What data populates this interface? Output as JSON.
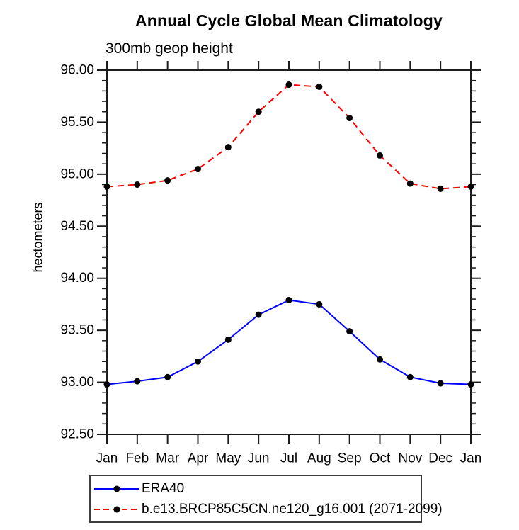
{
  "title": "Annual Cycle Global Mean Climatology",
  "subtitle": "300mb geop height",
  "ylabel": "hectometers",
  "colors": {
    "axis": "#1c1c1c",
    "marker": "#000000",
    "era40_line": "#0000ff",
    "model_line": "#ff0000",
    "legend_border": "#3d3d3d",
    "background": "#ffffff"
  },
  "chart_data": {
    "type": "line",
    "title": "Annual Cycle Global Mean Climatology",
    "subtitle": "300mb geop height",
    "ylabel": "hectometers",
    "categories": [
      "Jan",
      "Feb",
      "Mar",
      "Apr",
      "May",
      "Jun",
      "Jul",
      "Aug",
      "Sep",
      "Oct",
      "Nov",
      "Dec",
      "Jan"
    ],
    "series": [
      {
        "name": "ERA40",
        "color": "#0000ff",
        "style": "solid",
        "marker": "black-dot",
        "values": [
          92.98,
          93.01,
          93.05,
          93.2,
          93.41,
          93.65,
          93.79,
          93.75,
          93.49,
          93.22,
          93.05,
          92.99,
          92.98
        ]
      },
      {
        "name": "b.e13.BRCP85C5CN.ne120_g16.001 (2071-2099)",
        "color": "#ff0000",
        "style": "dashed",
        "marker": "black-dot",
        "values": [
          94.88,
          94.9,
          94.94,
          95.05,
          95.26,
          95.6,
          95.86,
          95.84,
          95.54,
          95.18,
          94.91,
          94.86,
          94.88
        ]
      }
    ],
    "ylim": [
      92.5,
      96.0
    ],
    "ytick_step": 0.5,
    "yminor_step": 0.1,
    "ytick_labels": [
      "92.50",
      "93.00",
      "93.50",
      "94.00",
      "94.50",
      "95.00",
      "95.50",
      "96.00"
    ],
    "grid": false,
    "legend_position": "bottom"
  }
}
